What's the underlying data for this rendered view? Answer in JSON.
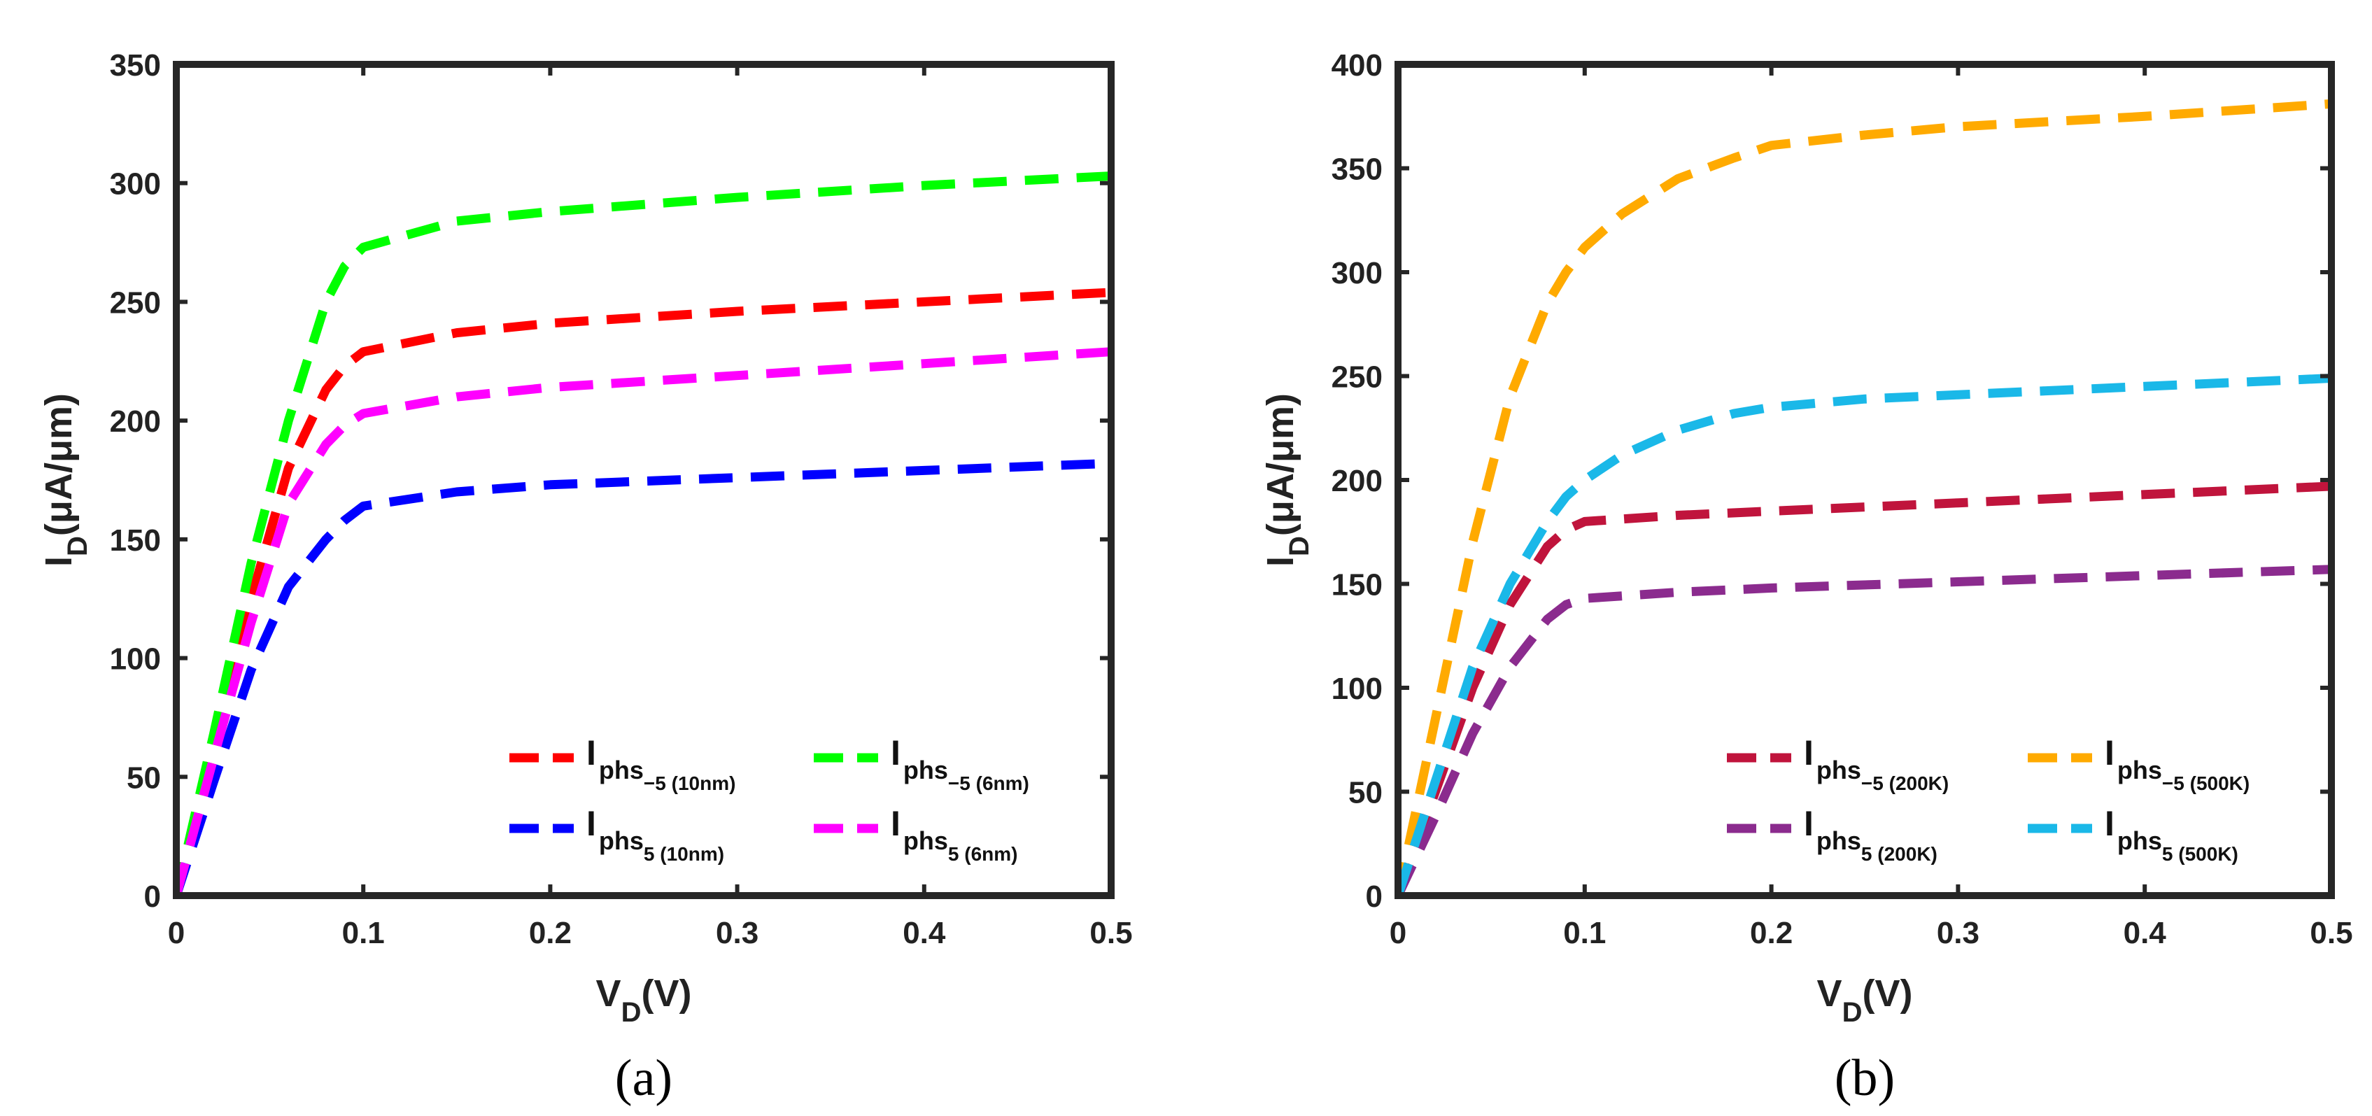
{
  "chart_data": [
    {
      "type": "line",
      "panel_label": "(a)",
      "xlabel": {
        "main": "V",
        "sub": "D",
        "rest": "(V)"
      },
      "ylabel": {
        "main": "I",
        "sub": "D",
        "rest": "(μA/μm)"
      },
      "xlim": [
        0,
        0.5
      ],
      "ylim": [
        0,
        350
      ],
      "xticks": [
        0,
        0.1,
        0.2,
        0.3,
        0.4,
        0.5
      ],
      "xtick_labels": [
        "0",
        "0.1",
        "0.2",
        "0.3",
        "0.4",
        "0.5"
      ],
      "yticks": [
        0,
        50,
        100,
        150,
        200,
        250,
        300,
        350
      ],
      "ytick_labels": [
        "0",
        "50",
        "100",
        "150",
        "200",
        "250",
        "300",
        "350"
      ],
      "legend_position": "bottom-right",
      "series": [
        {
          "name": "I phs −5 (10nm)",
          "label_main": "I",
          "label_sub": "phs",
          "label_subsub": "−5 (10nm)",
          "color": "#ff0000",
          "x": [
            0,
            0.02,
            0.04,
            0.06,
            0.08,
            0.09,
            0.1,
            0.15,
            0.2,
            0.3,
            0.4,
            0.5
          ],
          "y": [
            0,
            62,
            125,
            180,
            213,
            223,
            229,
            237,
            241,
            246,
            250,
            254
          ]
        },
        {
          "name": "I phs −5 (6nm)",
          "label_main": "I",
          "label_sub": "phs",
          "label_subsub": "−5 (6nm)",
          "color": "#00ff00",
          "x": [
            0,
            0.02,
            0.04,
            0.06,
            0.08,
            0.09,
            0.1,
            0.15,
            0.2,
            0.3,
            0.4,
            0.5
          ],
          "y": [
            0,
            68,
            140,
            200,
            250,
            265,
            273,
            284,
            288,
            294,
            299,
            303
          ]
        },
        {
          "name": "I phs 5 (10nm)",
          "label_main": "I",
          "label_sub": "phs",
          "label_subsub": "5 (10nm)",
          "color": "#0000ff",
          "x": [
            0,
            0.02,
            0.04,
            0.06,
            0.08,
            0.09,
            0.1,
            0.15,
            0.2,
            0.3,
            0.4,
            0.5
          ],
          "y": [
            0,
            48,
            95,
            130,
            150,
            158,
            164,
            170,
            173,
            176,
            179,
            182
          ]
        },
        {
          "name": "I phs 5 (6nm)",
          "label_main": "I",
          "label_sub": "phs",
          "label_subsub": "5 (6nm)",
          "color": "#ff00ff",
          "x": [
            0,
            0.02,
            0.04,
            0.06,
            0.08,
            0.09,
            0.1,
            0.15,
            0.2,
            0.3,
            0.4,
            0.5
          ],
          "y": [
            0,
            58,
            115,
            165,
            190,
            198,
            203,
            210,
            214,
            219,
            224,
            229
          ]
        }
      ]
    },
    {
      "type": "line",
      "panel_label": "(b)",
      "xlabel": {
        "main": "V",
        "sub": "D",
        "rest": "(V)"
      },
      "ylabel": {
        "main": "I",
        "sub": "D",
        "rest": "(μA/μm)"
      },
      "xlim": [
        0,
        0.5
      ],
      "ylim": [
        0,
        400
      ],
      "xticks": [
        0,
        0.1,
        0.2,
        0.3,
        0.4,
        0.5
      ],
      "xtick_labels": [
        "0",
        "0.1",
        "0.2",
        "0.3",
        "0.4",
        "0.5"
      ],
      "yticks": [
        0,
        50,
        100,
        150,
        200,
        250,
        300,
        350,
        400
      ],
      "ytick_labels": [
        "0",
        "50",
        "100",
        "150",
        "200",
        "250",
        "300",
        "350",
        "400"
      ],
      "legend_position": "bottom-right",
      "series": [
        {
          "name": "I phs −5 (200K)",
          "label_main": "I",
          "label_sub": "phs",
          "label_subsub": "−5 (200K)",
          "color": "#c0143c",
          "x": [
            0,
            0.02,
            0.04,
            0.06,
            0.08,
            0.09,
            0.1,
            0.15,
            0.2,
            0.3,
            0.4,
            0.5
          ],
          "y": [
            0,
            50,
            100,
            140,
            168,
            176,
            180,
            183,
            185,
            189,
            193,
            197
          ]
        },
        {
          "name": "I phs −5 (500K)",
          "label_main": "I",
          "label_sub": "phs",
          "label_subsub": "−5 (500K)",
          "color": "#ffaa00",
          "x": [
            0,
            0.02,
            0.04,
            0.06,
            0.08,
            0.09,
            0.1,
            0.12,
            0.15,
            0.18,
            0.2,
            0.25,
            0.3,
            0.4,
            0.5
          ],
          "y": [
            0,
            85,
            170,
            240,
            285,
            300,
            312,
            328,
            345,
            355,
            361,
            366,
            370,
            375,
            381
          ]
        },
        {
          "name": "I phs 5 (200K)",
          "label_main": "I",
          "label_sub": "phs",
          "label_subsub": "5 (200K)",
          "color": "#8b2b8e",
          "x": [
            0,
            0.02,
            0.04,
            0.06,
            0.08,
            0.09,
            0.1,
            0.15,
            0.2,
            0.3,
            0.4,
            0.5
          ],
          "y": [
            0,
            38,
            78,
            110,
            133,
            140,
            143,
            146,
            148,
            151,
            154,
            157
          ]
        },
        {
          "name": "I phs 5 (500K)",
          "label_main": "I",
          "label_sub": "phs",
          "label_subsub": "5 (500K)",
          "color": "#1ab8e8",
          "x": [
            0,
            0.02,
            0.04,
            0.06,
            0.08,
            0.09,
            0.1,
            0.12,
            0.15,
            0.18,
            0.2,
            0.25,
            0.3,
            0.4,
            0.5
          ],
          "y": [
            0,
            55,
            110,
            150,
            180,
            192,
            200,
            212,
            224,
            232,
            235,
            239,
            241,
            245,
            249
          ]
        }
      ]
    }
  ]
}
